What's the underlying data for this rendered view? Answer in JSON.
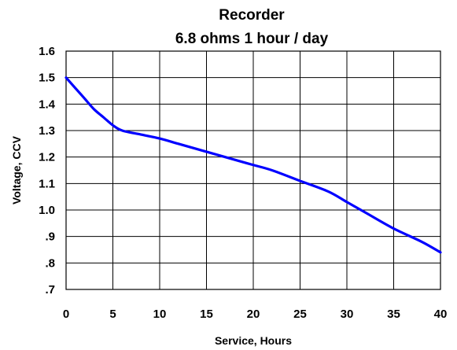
{
  "chart_data": {
    "type": "line",
    "title": "Recorder",
    "subtitle": "6.8 ohms 1 hour / day",
    "xlabel": "Service, Hours",
    "ylabel": "Voltage, CCV",
    "xlim": [
      0,
      40
    ],
    "ylim": [
      0.7,
      1.6
    ],
    "grid": true,
    "legend": "none",
    "x_ticks": [
      {
        "value": 0,
        "label": "0"
      },
      {
        "value": 5,
        "label": "5"
      },
      {
        "value": 10,
        "label": "10"
      },
      {
        "value": 15,
        "label": "15"
      },
      {
        "value": 20,
        "label": "20"
      },
      {
        "value": 25,
        "label": "25"
      },
      {
        "value": 30,
        "label": "30"
      },
      {
        "value": 35,
        "label": "35"
      },
      {
        "value": 40,
        "label": "40"
      }
    ],
    "y_ticks": [
      {
        "value": 0.7,
        "label": ".7"
      },
      {
        "value": 0.8,
        "label": ".8"
      },
      {
        "value": 0.9,
        "label": ".9"
      },
      {
        "value": 1.0,
        "label": "1.0"
      },
      {
        "value": 1.1,
        "label": "1.1"
      },
      {
        "value": 1.2,
        "label": "1.2"
      },
      {
        "value": 1.3,
        "label": "1.3"
      },
      {
        "value": 1.4,
        "label": "1.4"
      },
      {
        "value": 1.5,
        "label": "1.5"
      },
      {
        "value": 1.6,
        "label": "1.6"
      }
    ],
    "series": [
      {
        "color": "#0000ff",
        "x": [
          0,
          1,
          2,
          3,
          4,
          5,
          6,
          8,
          10,
          12,
          15,
          18,
          20,
          22,
          25,
          28,
          30,
          32,
          35,
          38,
          40
        ],
        "y": [
          1.5,
          1.46,
          1.42,
          1.38,
          1.35,
          1.32,
          1.3,
          1.285,
          1.27,
          1.25,
          1.22,
          1.19,
          1.17,
          1.15,
          1.11,
          1.07,
          1.03,
          0.99,
          0.93,
          0.88,
          0.84
        ]
      }
    ]
  }
}
